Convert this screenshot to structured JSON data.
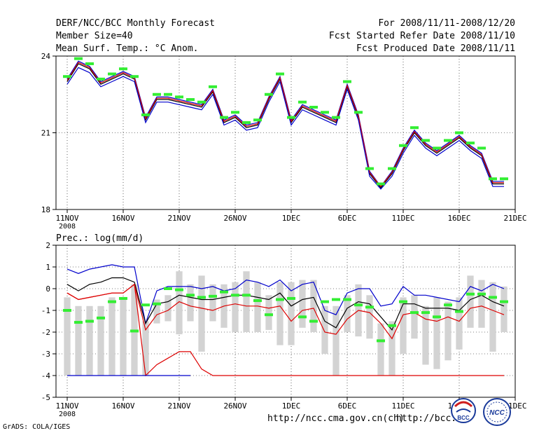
{
  "header": {
    "title": "DERF/NCC/BCC Monthly Forecast",
    "member_size": "Member Size=40",
    "variable": "Mean Surf. Temp.: °C Anom.",
    "period": "For 2008/11/11-2008/12/20",
    "refer_date": "Fcst Started Refer Date 2008/11/10",
    "produced_date": "Fcst Produced Date 2008/11/11"
  },
  "footer": {
    "grads": "GrADS: COLA/IGES",
    "url1": "http://ncc.cma.gov.cn(ch)",
    "url2": "http://bcc.",
    "logo_bcc": "BCC",
    "logo_ncc": "NCC"
  },
  "colors": {
    "blue": "#0000cc",
    "red": "#dd0000",
    "black": "#000000",
    "green_marker": "#33ee33",
    "box": "#d3d3d3"
  },
  "chart_data": [
    {
      "type": "line",
      "title": "Mean Surf. Temp.: °C Anom.",
      "x_ticks": [
        "11NOV",
        "16NOV",
        "21NOV",
        "26NOV",
        "1DEC",
        "6DEC",
        "11DEC",
        "16DEC",
        "21DEC"
      ],
      "x_year_label": "2008",
      "ylim": [
        18,
        24
      ],
      "yticks": [
        18,
        21,
        24
      ],
      "days": 40,
      "series": [
        {
          "name": "upper",
          "color": "#0000cc",
          "values": [
            23.1,
            23.8,
            23.6,
            23.0,
            23.2,
            23.4,
            23.2,
            21.6,
            22.4,
            22.4,
            22.3,
            22.2,
            22.1,
            22.7,
            21.5,
            21.7,
            21.3,
            21.4,
            22.4,
            23.2,
            21.5,
            22.1,
            21.9,
            21.7,
            21.5,
            22.9,
            21.7,
            19.5,
            18.9,
            19.5,
            20.4,
            21.1,
            20.6,
            20.3,
            20.6,
            20.9,
            20.5,
            20.2,
            19.1,
            19.1
          ]
        },
        {
          "name": "mean",
          "color": "#000000",
          "values": [
            23.0,
            23.7,
            23.5,
            22.9,
            23.1,
            23.3,
            23.1,
            21.5,
            22.3,
            22.3,
            22.2,
            22.1,
            22.0,
            22.6,
            21.4,
            21.6,
            21.2,
            21.3,
            22.3,
            23.1,
            21.4,
            22.0,
            21.8,
            21.6,
            21.4,
            22.8,
            21.6,
            19.4,
            18.85,
            19.4,
            20.3,
            21.0,
            20.5,
            20.2,
            20.5,
            20.8,
            20.4,
            20.1,
            19.0,
            19.0
          ]
        },
        {
          "name": "red",
          "color": "#dd0000",
          "values": [
            23.05,
            23.75,
            23.55,
            22.95,
            23.15,
            23.35,
            23.15,
            21.55,
            22.35,
            22.35,
            22.25,
            22.15,
            22.05,
            22.65,
            21.45,
            21.65,
            21.25,
            21.35,
            22.35,
            23.15,
            21.45,
            22.05,
            21.85,
            21.65,
            21.45,
            22.85,
            21.65,
            19.45,
            18.9,
            19.45,
            20.35,
            21.05,
            20.55,
            20.25,
            20.55,
            20.85,
            20.45,
            20.15,
            19.05,
            19.05
          ]
        },
        {
          "name": "lower",
          "color": "#0000cc",
          "values": [
            22.9,
            23.55,
            23.35,
            22.8,
            23.0,
            23.2,
            23.0,
            21.4,
            22.2,
            22.2,
            22.1,
            22.0,
            21.9,
            22.5,
            21.3,
            21.5,
            21.1,
            21.2,
            22.2,
            23.0,
            21.3,
            21.9,
            21.7,
            21.5,
            21.3,
            22.7,
            21.5,
            19.3,
            18.8,
            19.3,
            20.2,
            20.9,
            20.4,
            20.1,
            20.4,
            20.7,
            20.3,
            20.0,
            18.9,
            18.9
          ]
        }
      ],
      "markers": [
        23.2,
        23.9,
        23.7,
        23.1,
        23.3,
        23.5,
        23.2,
        21.7,
        22.5,
        22.5,
        22.4,
        22.3,
        22.2,
        22.8,
        21.6,
        21.8,
        21.4,
        21.5,
        22.5,
        23.3,
        21.6,
        22.2,
        22.0,
        21.8,
        21.6,
        23.0,
        21.8,
        19.6,
        19.0,
        19.6,
        20.5,
        21.2,
        20.7,
        20.4,
        20.7,
        21.0,
        20.6,
        20.4,
        19.2,
        19.2
      ]
    },
    {
      "type": "box",
      "title": "Prec.: log(mm/d)",
      "x_ticks": [
        "11NOV",
        "16NOV",
        "21NOV",
        "26NOV",
        "1DEC",
        "6DEC",
        "11DEC",
        "16DEC",
        "21DEC"
      ],
      "x_year_label": "2008",
      "ylim": [
        -5,
        2
      ],
      "yticks": [
        -5,
        -4,
        -3,
        -2,
        -1,
        0,
        1,
        2
      ],
      "days": 40,
      "box_high": [
        -0.4,
        -0.8,
        -0.8,
        -0.8,
        -0.4,
        -0.4,
        0.2,
        -1.5,
        -0.5,
        -0.3,
        0.8,
        0.2,
        0.6,
        0.2,
        0.2,
        0.3,
        0.8,
        0.3,
        -0.3,
        0.3,
        0.3,
        0.4,
        0.4,
        -0.8,
        -0.8,
        -0.3,
        0.2,
        -0.3,
        -1.6,
        -1.5,
        -0.4,
        -0.3,
        -0.8,
        -0.4,
        -0.6,
        -0.4,
        0.6,
        0.4,
        0.3,
        0.1
      ],
      "box_low": [
        -4.0,
        -4.0,
        -4.0,
        -4.0,
        -4.0,
        -4.0,
        -4.0,
        -4.0,
        -1.6,
        -1.5,
        -2.1,
        -1.5,
        -2.9,
        -1.5,
        -1.8,
        -2.0,
        -2.0,
        -2.0,
        -1.9,
        -2.6,
        -2.6,
        -1.8,
        -2.0,
        -3.0,
        -4.0,
        -2.0,
        -2.2,
        -2.3,
        -4.0,
        -4.0,
        -3.0,
        -2.3,
        -3.5,
        -3.7,
        -3.3,
        -2.8,
        -1.8,
        -1.8,
        -2.9,
        -2.0
      ],
      "series": [
        {
          "name": "upper",
          "color": "#0000cc",
          "values": [
            0.9,
            0.7,
            0.9,
            1.0,
            1.1,
            1.0,
            1.0,
            -1.6,
            -0.1,
            0.1,
            0.1,
            0.1,
            0.0,
            0.1,
            -0.1,
            0.0,
            0.4,
            0.3,
            0.1,
            0.4,
            -0.1,
            0.2,
            0.3,
            -1.0,
            -1.2,
            -0.2,
            -0.0,
            -0.0,
            -0.8,
            -0.7,
            0.1,
            -0.3,
            -0.3,
            -0.4,
            -0.5,
            -0.6,
            0.1,
            -0.1,
            0.2,
            0.0
          ]
        },
        {
          "name": "mean",
          "color": "#000000",
          "values": [
            0.2,
            -0.1,
            0.2,
            0.3,
            0.5,
            0.5,
            0.3,
            -1.6,
            -0.7,
            -0.6,
            -0.3,
            -0.4,
            -0.5,
            -0.5,
            -0.4,
            -0.3,
            -0.3,
            -0.4,
            -0.5,
            -0.2,
            -0.8,
            -0.5,
            -0.4,
            -1.5,
            -1.8,
            -0.9,
            -0.6,
            -0.7,
            -1.3,
            -1.9,
            -0.7,
            -0.7,
            -0.9,
            -0.9,
            -0.9,
            -1.0,
            -0.5,
            -0.3,
            -0.6,
            -0.8
          ]
        },
        {
          "name": "red",
          "color": "#dd0000",
          "values": [
            -0.2,
            -0.5,
            -0.4,
            -0.3,
            -0.2,
            -0.2,
            0.2,
            -4.0,
            -3.5,
            -3.2,
            -2.9,
            -2.9,
            -3.7,
            -4.0,
            -4.0,
            -4.0,
            -4.0,
            -4.0,
            -4.0,
            -4.0,
            -4.0,
            -4.0,
            -4.0,
            -4.0,
            -4.0,
            -4.0,
            -4.0,
            -4.0,
            -4.0,
            -4.0,
            -4.0,
            -4.0,
            -4.0,
            -4.0,
            -4.0,
            -4.0,
            -4.0,
            -4.0,
            -4.0,
            -4.0
          ],
          "values2": [
            -0.2,
            -0.5,
            -0.4,
            -0.3,
            -0.2,
            -0.2,
            0.2,
            -1.9,
            -1.2,
            -1.0,
            -0.6,
            -0.8,
            -0.9,
            -1.0,
            -0.8,
            -0.7,
            -0.8,
            -0.8,
            -0.9,
            -0.8,
            -1.5,
            -1.0,
            -0.9,
            -2.0,
            -2.1,
            -1.4,
            -1.0,
            -1.1,
            -1.6,
            -2.3,
            -1.2,
            -1.1,
            -1.4,
            -1.5,
            -1.3,
            -1.5,
            -0.9,
            -0.8,
            -1.0,
            -1.2
          ]
        },
        {
          "name": "floor",
          "color": "#0000cc",
          "values": [
            -4.0,
            -4.0,
            -4.0,
            -4.0,
            -4.0,
            -4.0,
            -4.0,
            -4.0,
            -4.0,
            -4.0,
            -4.0,
            -4.0
          ]
        }
      ],
      "markers": [
        -1.0,
        -1.55,
        -1.5,
        -1.35,
        -0.6,
        -0.45,
        -1.95,
        -0.75,
        -0.7,
        0.0,
        -0.05,
        -0.3,
        -0.4,
        -0.35,
        -0.15,
        -0.3,
        -0.3,
        -0.55,
        -1.2,
        -0.5,
        -0.45,
        -1.3,
        -1.5,
        -0.6,
        -0.5,
        -0.5,
        -0.75,
        -0.85,
        -2.4,
        -1.7,
        -0.6,
        -1.1,
        -1.1,
        -1.3,
        -0.75,
        -1.05,
        -0.25,
        -0.25,
        -0.4,
        -0.6
      ]
    }
  ]
}
